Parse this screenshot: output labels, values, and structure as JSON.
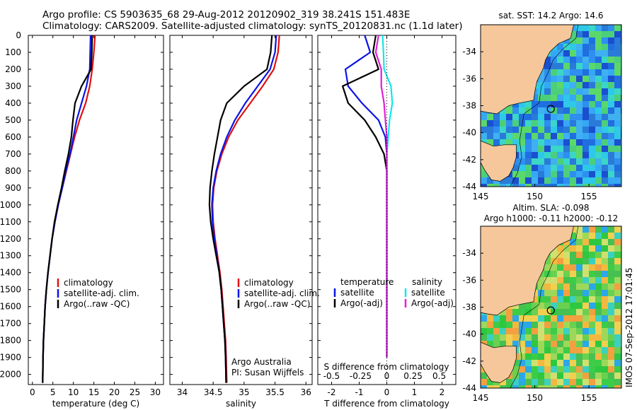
{
  "header": {
    "line1": "Argo profile: CS 5903635_68 29-Aug-2012 20120902_319 38.241S 151.483E",
    "line2": "Climatology: CARS2009. Satellite-adjusted climatology: synTS_20120831.nc (1.1d later)"
  },
  "colors": {
    "climatology": "#e01010",
    "satellite": "#0a14e6",
    "argo": "#000000",
    "satellite_salinity": "#10e8e8",
    "argo_salinity": "#e020d8",
    "land": "#f6c79b"
  },
  "chart_data": [
    {
      "id": "temperature",
      "type": "line",
      "xlabel": "temperature (deg C)",
      "ylabel": "",
      "xlim": [
        -1,
        32
      ],
      "ylim": [
        2060,
        0
      ],
      "xticks": [
        "0",
        "5",
        "10",
        "15",
        "20",
        "25",
        "30"
      ],
      "yticks": [
        "0",
        "100",
        "200",
        "300",
        "400",
        "500",
        "600",
        "700",
        "800",
        "900",
        "1000",
        "1100",
        "1200",
        "1300",
        "1400",
        "1500",
        "1600",
        "1700",
        "1800",
        "1900",
        "2000"
      ],
      "legend": [
        "climatology",
        "satellite-adj. clim.",
        "Argo(..raw -QC)"
      ],
      "series": [
        {
          "name": "climatology",
          "color": "#e01010",
          "x": [
            15.3,
            15.0,
            14.6,
            14.0,
            13.0,
            11.5,
            10.3,
            9.3,
            8.3,
            7.3,
            6.3,
            5.5,
            4.8,
            4.3,
            3.8,
            3.4,
            3.1,
            2.9,
            2.7,
            2.6,
            2.5
          ],
          "y": [
            0,
            100,
            200,
            300,
            400,
            500,
            600,
            700,
            800,
            900,
            1000,
            1100,
            1200,
            1300,
            1400,
            1500,
            1600,
            1700,
            1800,
            1900,
            2050
          ]
        },
        {
          "name": "satellite-adj. clim.",
          "color": "#0a14e6",
          "x": [
            14.2,
            14.1,
            14.0,
            13.2,
            12.0,
            10.8,
            10.0,
            9.2,
            8.2,
            7.3,
            6.3,
            5.5,
            4.8,
            4.3,
            3.8,
            3.4,
            3.1,
            2.9,
            2.7,
            2.6,
            2.5
          ],
          "y": [
            0,
            100,
            200,
            300,
            400,
            500,
            600,
            700,
            800,
            900,
            1000,
            1100,
            1200,
            1300,
            1400,
            1500,
            1600,
            1700,
            1800,
            1900,
            2050
          ]
        },
        {
          "name": "Argo(..raw -QC)",
          "color": "#000000",
          "x": [
            14.6,
            14.5,
            14.3,
            12.0,
            10.4,
            9.9,
            9.5,
            8.8,
            7.9,
            7.1,
            6.2,
            5.4,
            4.8,
            4.3,
            3.8,
            3.4,
            3.1,
            2.9,
            2.7,
            2.6,
            2.5
          ],
          "y": [
            0,
            100,
            200,
            300,
            400,
            500,
            600,
            700,
            800,
            900,
            1000,
            1100,
            1200,
            1300,
            1400,
            1500,
            1600,
            1700,
            1800,
            1900,
            2050
          ]
        }
      ]
    },
    {
      "id": "salinity",
      "type": "line",
      "xlabel": "salinity",
      "ylabel": "",
      "xlim": [
        33.8,
        36.1
      ],
      "ylim": [
        2060,
        0
      ],
      "xticks": [
        "34",
        "34.5",
        "35",
        "35.5",
        "36"
      ],
      "legend": [
        "climatology",
        "satellite-adj. clim.",
        "Argo(..raw -QC)"
      ],
      "annotation": [
        "Argo Australia",
        "PI: Susan Wijffels"
      ],
      "series": [
        {
          "name": "climatology",
          "color": "#e01010",
          "x": [
            35.57,
            35.55,
            35.48,
            35.3,
            35.1,
            34.9,
            34.75,
            34.64,
            34.56,
            34.51,
            34.49,
            34.5,
            34.53,
            34.57,
            34.61,
            34.64,
            34.66,
            34.68,
            34.7,
            34.71,
            34.72
          ],
          "y": [
            0,
            100,
            200,
            300,
            400,
            500,
            600,
            700,
            800,
            900,
            1000,
            1100,
            1200,
            1300,
            1400,
            1500,
            1600,
            1700,
            1800,
            1900,
            2050
          ]
        },
        {
          "name": "satellite-adj. clim.",
          "color": "#0a14e6",
          "x": [
            35.52,
            35.5,
            35.42,
            35.22,
            35.02,
            34.85,
            34.72,
            34.62,
            34.55,
            34.5,
            34.48,
            34.49,
            34.52,
            34.56,
            34.6,
            34.63,
            34.65,
            34.67,
            34.69,
            34.7,
            34.71
          ],
          "y": [
            0,
            100,
            200,
            300,
            400,
            500,
            600,
            700,
            800,
            900,
            1000,
            1100,
            1200,
            1300,
            1400,
            1500,
            1600,
            1700,
            1800,
            1900,
            2050
          ]
        },
        {
          "name": "Argo(..raw -QC)",
          "color": "#000000",
          "x": [
            35.45,
            35.43,
            35.37,
            35.0,
            34.72,
            34.62,
            34.57,
            34.52,
            34.48,
            34.45,
            34.44,
            34.46,
            34.5,
            34.55,
            34.6,
            34.63,
            34.65,
            34.67,
            34.69,
            34.7,
            34.71
          ],
          "y": [
            0,
            100,
            200,
            300,
            400,
            500,
            600,
            700,
            800,
            900,
            1000,
            1100,
            1200,
            1300,
            1400,
            1500,
            1600,
            1700,
            1800,
            1900,
            2050
          ]
        }
      ]
    },
    {
      "id": "difference",
      "type": "line",
      "xlabel": "T difference from climatology",
      "top_label": "S difference from climatology",
      "xlim": [
        -2.5,
        2.5
      ],
      "ylim": [
        2060,
        0
      ],
      "xticks": [
        "-2",
        "-1",
        "0",
        "1",
        "2"
      ],
      "top_ticks": [
        "-0.5",
        "-0.25",
        "0",
        "0.25",
        "0.5"
      ],
      "legend_headers": [
        "temperature",
        "salinity"
      ],
      "legend": [
        "satellite",
        "Argo(-adj)",
        "satellite",
        "Argo(-adj)"
      ],
      "series": [
        {
          "name": "satellite",
          "color": "#0a14e6",
          "x": [
            -0.8,
            -0.6,
            -1.5,
            -1.4,
            -0.9,
            -0.3,
            -0.05,
            0.0,
            0.0,
            0.0,
            0.0,
            0.0,
            0.0,
            0.0,
            0.0,
            0.0,
            0.0,
            0.0,
            0.0,
            0.0
          ],
          "y": [
            0,
            100,
            200,
            300,
            400,
            500,
            600,
            700,
            800,
            900,
            1000,
            1100,
            1200,
            1300,
            1400,
            1500,
            1600,
            1700,
            1800,
            1900
          ]
        },
        {
          "name": "Argo(-adj)",
          "color": "#000000",
          "x": [
            -0.4,
            -0.5,
            -0.3,
            -1.6,
            -1.4,
            -0.8,
            -0.4,
            -0.1,
            0.0,
            0.0,
            0.0,
            0.0,
            0.0,
            0.0,
            0.0,
            0.0,
            0.0,
            0.0,
            0.0,
            0.0
          ],
          "y": [
            0,
            100,
            200,
            300,
            400,
            500,
            600,
            700,
            800,
            900,
            1000,
            1100,
            1200,
            1300,
            1400,
            1500,
            1600,
            1700,
            1800,
            1900
          ]
        },
        {
          "name": "satellite",
          "color": "#10e8e8",
          "x": [
            -0.15,
            -0.12,
            -0.1,
            0.15,
            0.2,
            0.1,
            0.05,
            0.0,
            0.0,
            0.0,
            0.0,
            0.0,
            0.0,
            0.0,
            0.0,
            0.0,
            0.0,
            0.0,
            0.0,
            0.0
          ],
          "y": [
            0,
            100,
            200,
            300,
            400,
            500,
            600,
            700,
            800,
            900,
            1000,
            1100,
            1200,
            1300,
            1400,
            1500,
            1600,
            1700,
            1800,
            1900
          ]
        },
        {
          "name": "Argo(-adj)",
          "color": "#e020d8",
          "x": [
            -0.3,
            -0.4,
            -0.2,
            -0.2,
            -0.1,
            -0.05,
            0.0,
            0.0,
            0.0,
            0.0,
            0.0,
            0.0,
            0.0,
            0.0,
            0.0,
            0.0,
            0.0,
            0.0,
            0.0,
            0.0
          ],
          "y": [
            0,
            100,
            200,
            300,
            400,
            500,
            600,
            700,
            800,
            900,
            1000,
            1100,
            1200,
            1300,
            1400,
            1500,
            1600,
            1700,
            1800,
            1900
          ]
        }
      ]
    },
    {
      "id": "sst_map",
      "type": "heatmap",
      "title": "sat. SST: 14.2 Argo: 14.6",
      "xlim": [
        145,
        158
      ],
      "ylim": [
        -44,
        -32
      ],
      "xticks": [
        "145",
        "150",
        "155"
      ],
      "yticks": [
        "-34",
        "-36",
        "-38",
        "-40",
        "-42",
        "-44"
      ],
      "marker": {
        "lon": 151.483,
        "lat": -38.241
      }
    },
    {
      "id": "sla_map",
      "type": "heatmap",
      "title_lines": [
        "Altim. SLA: -0.098",
        "Argo h1000: -0.11 h2000: -0.12"
      ],
      "xlim": [
        145,
        158
      ],
      "ylim": [
        -44,
        -32
      ],
      "xticks": [
        "145",
        "150",
        "155"
      ],
      "yticks": [
        "-34",
        "-36",
        "-38",
        "-40",
        "-42",
        "-44"
      ],
      "marker": {
        "lon": 151.483,
        "lat": -38.241
      }
    }
  ],
  "footer": {
    "stamp": "IMOS 07-Sep-2012 17:01:45"
  }
}
